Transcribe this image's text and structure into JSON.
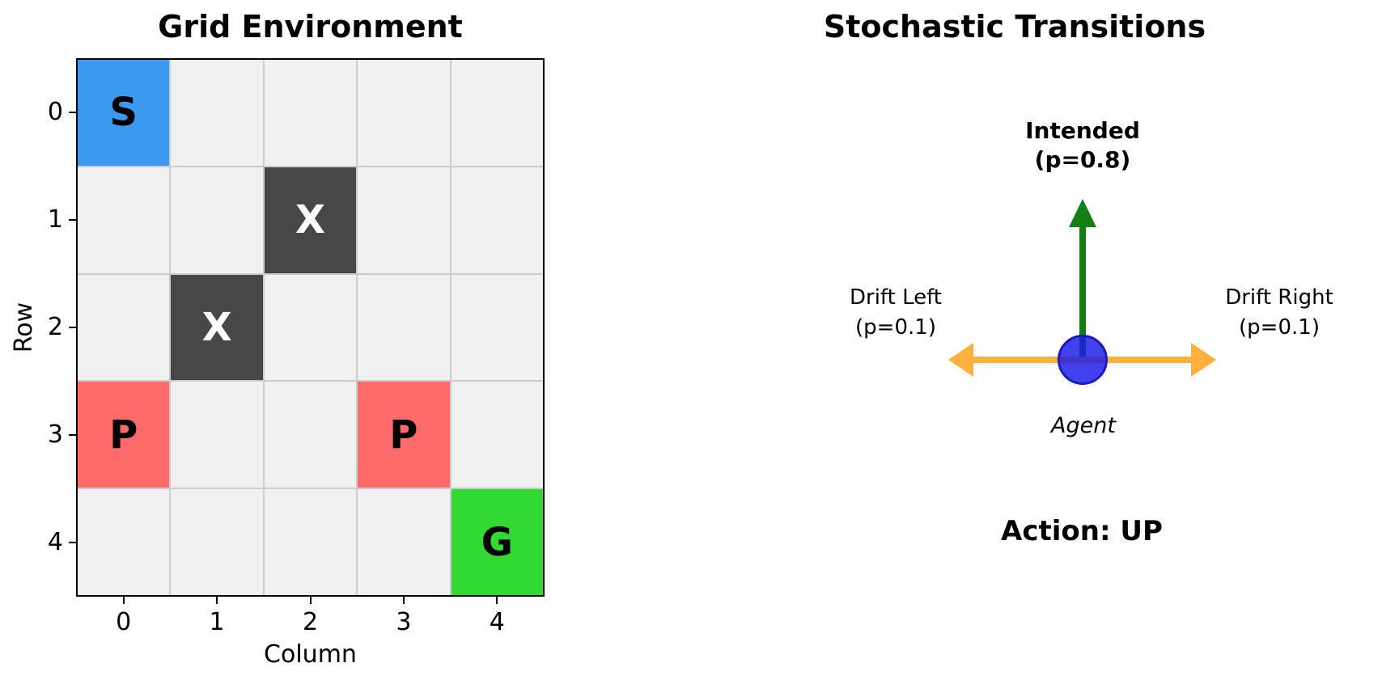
{
  "chart_data": [
    {
      "type": "heatmap",
      "title": "Grid Environment",
      "xlabel": "Column",
      "ylabel": "Row",
      "x_ticks": [
        "0",
        "1",
        "2",
        "3",
        "4"
      ],
      "y_ticks": [
        "0",
        "1",
        "2",
        "3",
        "4"
      ],
      "n_rows": 5,
      "n_cols": 5,
      "grid_on": true,
      "empty_cell_color": "#F0F0F0",
      "gridline_color": "#CBCBCB",
      "marked_cells": [
        {
          "row": 0,
          "col": 0,
          "label": "S",
          "color": "#3B99F0",
          "text_color": "#000000"
        },
        {
          "row": 1,
          "col": 2,
          "label": "X",
          "color": "#474747",
          "text_color": "#FFFFFF"
        },
        {
          "row": 2,
          "col": 1,
          "label": "X",
          "color": "#474747",
          "text_color": "#FFFFFF"
        },
        {
          "row": 3,
          "col": 0,
          "label": "P",
          "color": "#FF6B6B",
          "text_color": "#000000"
        },
        {
          "row": 3,
          "col": 3,
          "label": "P",
          "color": "#FF6B6B",
          "text_color": "#000000"
        },
        {
          "row": 4,
          "col": 4,
          "label": "G",
          "color": "#32D932",
          "text_color": "#000000"
        }
      ]
    },
    {
      "type": "diagram",
      "title": "Stochastic Transitions",
      "annotations": {
        "intended": {
          "label": "Intended",
          "prob": "(p=0.8)",
          "direction": "up",
          "color": "#117F11"
        },
        "drift_left": {
          "label": "Drift Left",
          "prob": "(p=0.1)",
          "direction": "left",
          "color": "#FFB03C"
        },
        "drift_right": {
          "label": "Drift Right",
          "prob": "(p=0.1)",
          "direction": "right",
          "color": "#FFB03C"
        },
        "agent": {
          "label": "Agent",
          "fill_color": "#1919E8",
          "border_color": "#1A1AC2"
        },
        "action": {
          "label": "Action: UP"
        }
      }
    }
  ]
}
